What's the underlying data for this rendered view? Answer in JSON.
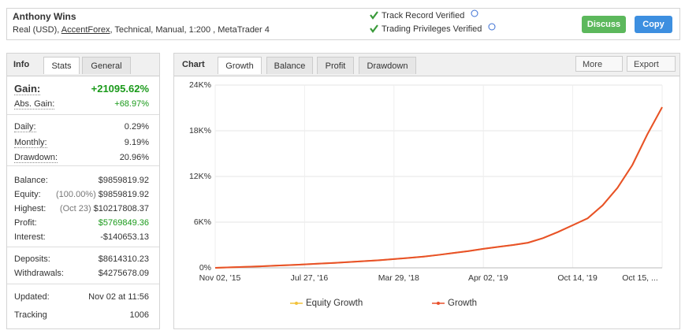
{
  "header": {
    "name": "Anthony Wins",
    "details_before": "Real (USD), ",
    "broker": "AccentForex",
    "details_after": ", Technical, Manual, 1:200 , MetaTrader 4",
    "verified": [
      "Track Record Verified",
      "Trading Privileges Verified"
    ],
    "buttons": [
      "Discuss",
      "Copy"
    ]
  },
  "info": {
    "tabs": [
      "Info",
      "Stats",
      "General"
    ],
    "groups": [
      [
        {
          "label": "Gain:",
          "value": "+21095.62%"
        },
        {
          "label": "Abs. Gain:",
          "value": "+68.97%"
        }
      ],
      [
        {
          "label": "Daily:",
          "value": "0.29%"
        },
        {
          "label": "Monthly:",
          "value": "9.19%"
        },
        {
          "label": "Drawdown:",
          "value": "20.96%"
        }
      ],
      [
        {
          "label": "Balance:",
          "value": "$9859819.92"
        },
        {
          "label": "Equity:",
          "note": "(100.00%)",
          "value": "$9859819.92"
        },
        {
          "label": "Highest:",
          "note": "(Oct 23)",
          "value": "$10217808.37"
        },
        {
          "label": "Profit:",
          "value": "$5769849.36"
        },
        {
          "label": "Interest:",
          "value": "-$140653.13"
        }
      ],
      [
        {
          "label": "Deposits:",
          "value": "$8614310.23"
        },
        {
          "label": "Withdrawals:",
          "value": "$4275678.09"
        }
      ],
      [
        {
          "label": "Updated:",
          "value": "Nov 02 at 11:56"
        },
        {
          "label": "Tracking",
          "value": "1006"
        }
      ]
    ]
  },
  "chart_panel": {
    "title": "Chart",
    "tabs": [
      "Growth",
      "Balance",
      "Profit",
      "Drawdown"
    ],
    "menus": [
      "More",
      "Export"
    ]
  },
  "chart_data": {
    "type": "line",
    "categories": [
      "Nov 02, '15",
      null,
      null,
      null,
      null,
      null,
      "Jul 27, '16",
      null,
      null,
      null,
      null,
      null,
      "Mar 29, '18",
      null,
      null,
      null,
      null,
      null,
      "Apr 02, '19",
      null,
      null,
      null,
      null,
      null,
      "Oct 14, '19",
      null,
      null,
      null,
      null,
      null,
      "Oct 15, ..."
    ],
    "series": [
      {
        "name": "Equity Growth",
        "color": "#f2c23a",
        "values": [
          0,
          60,
          130,
          200,
          280,
          360,
          450,
          550,
          650,
          760,
          880,
          1000,
          1150,
          1300,
          1480,
          1700,
          1950,
          2200,
          2500,
          2750,
          3000,
          3300,
          3900,
          4700,
          5600,
          6500,
          8200,
          10500,
          13500,
          17500,
          21095.62
        ]
      },
      {
        "name": "Growth",
        "color": "#e8502a",
        "values": [
          0,
          60,
          130,
          200,
          280,
          360,
          450,
          550,
          650,
          760,
          880,
          1000,
          1150,
          1300,
          1480,
          1700,
          1950,
          2200,
          2500,
          2750,
          3000,
          3300,
          3900,
          4700,
          5600,
          6500,
          8200,
          10500,
          13500,
          17500,
          21095.62
        ]
      }
    ],
    "ylim": [
      0,
      24000
    ],
    "yticks": [
      {
        "value": 0,
        "label": "0%"
      },
      {
        "value": 6000,
        "label": "6K%"
      },
      {
        "value": 12000,
        "label": "12K%"
      },
      {
        "value": 18000,
        "label": "18K%"
      },
      {
        "value": 24000,
        "label": "24K%"
      }
    ],
    "grid": true
  }
}
